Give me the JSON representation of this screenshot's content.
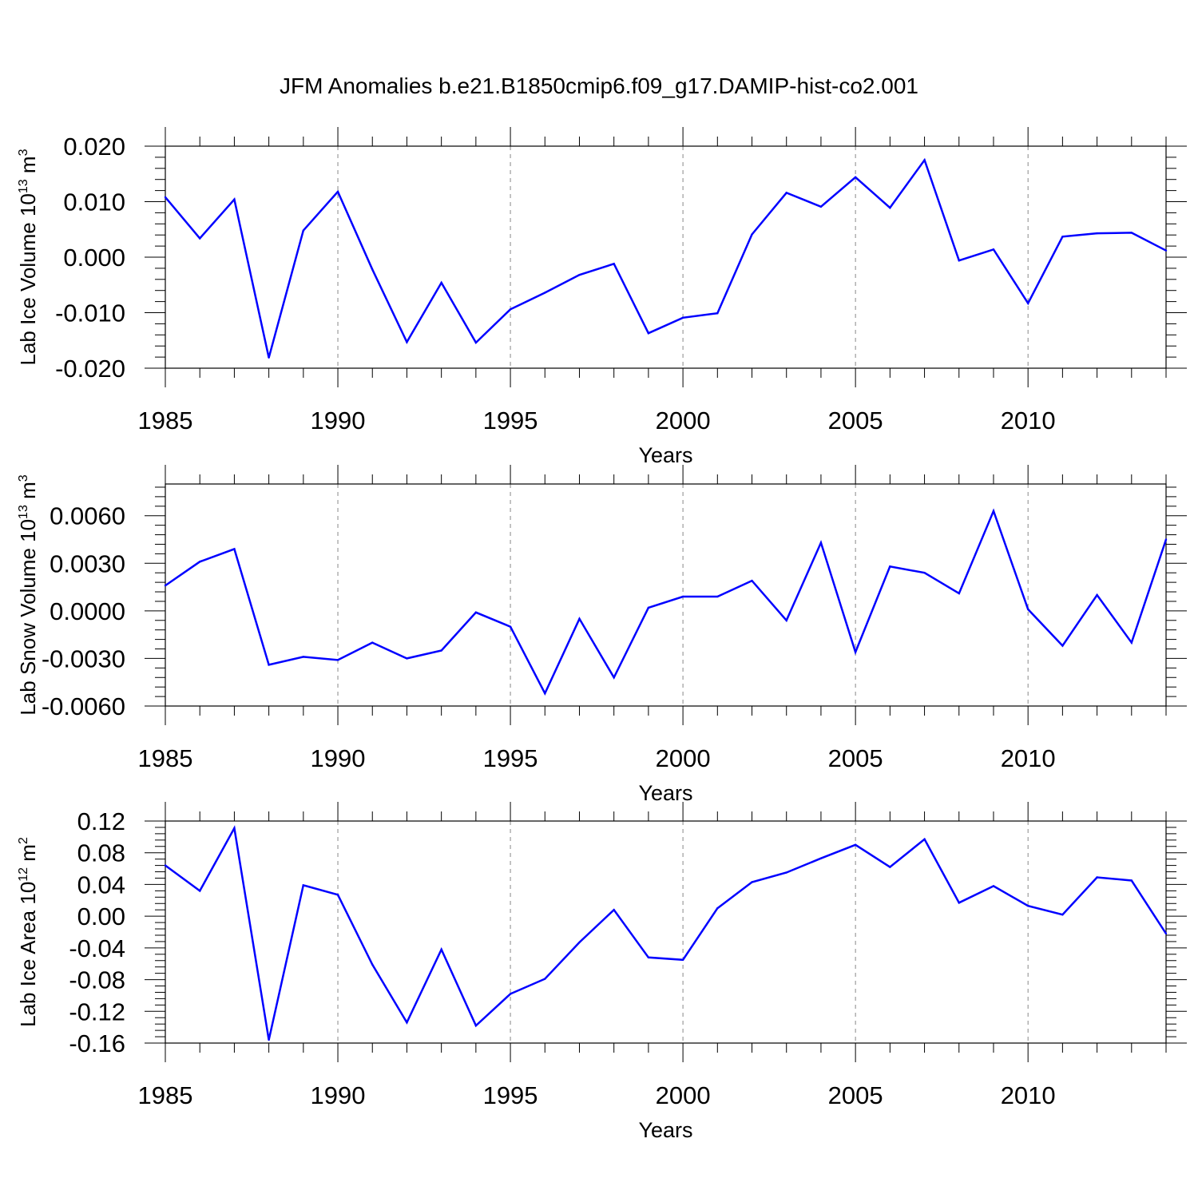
{
  "title": "JFM Anomalies b.e21.B1850cmip6.f09_g17.DAMIP-hist-co2.001",
  "line_color": "#0000ff",
  "chart_data": [
    {
      "type": "line",
      "ylabel": "Lab Ice Volume",
      "yunit": "10",
      "yunit_exp": "13",
      "yunit_tail": " m",
      "yunit_tail_exp": "3",
      "xlabel": "Years",
      "xlim": [
        1985,
        2014
      ],
      "ylim": [
        -0.02,
        0.02
      ],
      "y_ticks": [
        -0.02,
        -0.01,
        0.0,
        0.01,
        0.02
      ],
      "y_tick_labels": [
        "-0.020",
        "-0.010",
        "0.000",
        "0.010",
        "0.020"
      ],
      "x_ticks": [
        1985,
        1990,
        1995,
        2000,
        2005,
        2010
      ],
      "x_tick_labels": [
        "1985",
        "1990",
        "1995",
        "2000",
        "2005",
        "2010"
      ],
      "x": [
        1985,
        1986,
        1987,
        1988,
        1989,
        1990,
        1991,
        1992,
        1993,
        1994,
        1995,
        1996,
        1997,
        1998,
        1999,
        2000,
        2001,
        2002,
        2003,
        2004,
        2005,
        2006,
        2007,
        2008,
        2009,
        2010,
        2011,
        2012,
        2013,
        2014
      ],
      "values": [
        0.0108,
        0.0034,
        0.0104,
        -0.0181,
        0.0048,
        0.0118,
        -0.0022,
        -0.0153,
        -0.0046,
        -0.0154,
        -0.0094,
        -0.0064,
        -0.0032,
        -0.0012,
        -0.0137,
        -0.0109,
        -0.0101,
        0.0041,
        0.0116,
        0.0091,
        0.0144,
        0.0089,
        0.0175,
        -0.0006,
        0.0014,
        -0.0083,
        0.0037,
        0.0043,
        0.0044,
        0.0012
      ]
    },
    {
      "type": "line",
      "ylabel": "Lab Snow Volume",
      "yunit": "10",
      "yunit_exp": "13",
      "yunit_tail": " m",
      "yunit_tail_exp": "3",
      "xlabel": "Years",
      "xlim": [
        1985,
        2014
      ],
      "ylim": [
        -0.006,
        0.008
      ],
      "y_ticks": [
        -0.006,
        -0.003,
        0.0,
        0.003,
        0.006
      ],
      "y_tick_labels": [
        "-0.0060",
        "-0.0030",
        "0.0000",
        "0.0030",
        "0.0060"
      ],
      "x_ticks": [
        1985,
        1990,
        1995,
        2000,
        2005,
        2010
      ],
      "x_tick_labels": [
        "1985",
        "1990",
        "1995",
        "2000",
        "2005",
        "2010"
      ],
      "x": [
        1985,
        1986,
        1987,
        1988,
        1989,
        1990,
        1991,
        1992,
        1993,
        1994,
        1995,
        1996,
        1997,
        1998,
        1999,
        2000,
        2001,
        2002,
        2003,
        2004,
        2005,
        2006,
        2007,
        2008,
        2009,
        2010,
        2011,
        2012,
        2013,
        2014
      ],
      "values": [
        0.0016,
        0.0031,
        0.0039,
        -0.0034,
        -0.0029,
        -0.0031,
        -0.002,
        -0.003,
        -0.0025,
        -0.0001,
        -0.001,
        -0.0052,
        -0.0005,
        -0.0042,
        0.0002,
        0.0009,
        0.0009,
        0.0019,
        -0.0006,
        0.0043,
        -0.0026,
        0.0028,
        0.0024,
        0.0011,
        0.0063,
        0.0001,
        -0.0022,
        0.001,
        -0.002,
        0.0045
      ]
    },
    {
      "type": "line",
      "ylabel": "Lab Ice Area",
      "yunit": "10",
      "yunit_exp": "12",
      "yunit_tail": " m",
      "yunit_tail_exp": "2",
      "xlabel": "Years",
      "xlim": [
        1985,
        2014
      ],
      "ylim": [
        -0.16,
        0.12
      ],
      "y_ticks": [
        -0.16,
        -0.12,
        -0.08,
        -0.04,
        0.0,
        0.04,
        0.08,
        0.12
      ],
      "y_tick_labels": [
        "-0.16",
        "-0.12",
        "-0.08",
        "-0.04",
        "0.00",
        "0.04",
        "0.08",
        "0.12"
      ],
      "x_ticks": [
        1985,
        1990,
        1995,
        2000,
        2005,
        2010
      ],
      "x_tick_labels": [
        "1985",
        "1990",
        "1995",
        "2000",
        "2005",
        "2010"
      ],
      "x": [
        1985,
        1986,
        1987,
        1988,
        1989,
        1990,
        1991,
        1992,
        1993,
        1994,
        1995,
        1996,
        1997,
        1998,
        1999,
        2000,
        2001,
        2002,
        2003,
        2004,
        2005,
        2006,
        2007,
        2008,
        2009,
        2010,
        2011,
        2012,
        2013,
        2014
      ],
      "values": [
        0.064,
        0.032,
        0.111,
        -0.156,
        0.039,
        0.027,
        -0.061,
        -0.134,
        -0.042,
        -0.138,
        -0.098,
        -0.079,
        -0.033,
        0.008,
        -0.052,
        -0.055,
        0.01,
        0.043,
        0.055,
        0.073,
        0.09,
        0.062,
        0.097,
        0.017,
        0.038,
        0.013,
        0.002,
        0.049,
        0.045,
        -0.022
      ]
    }
  ]
}
